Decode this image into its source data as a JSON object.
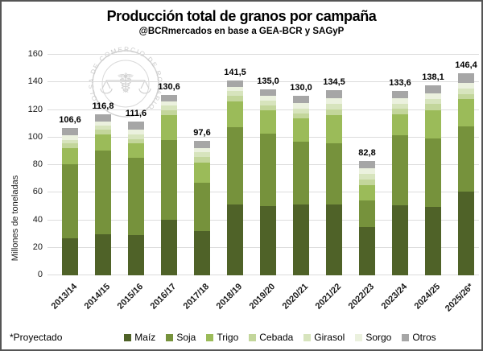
{
  "title": "Producción total de granos por campaña",
  "subtitle": "@BCRmercados en base a GEA-BCR y SAGyP",
  "footnote": "*Proyectado",
  "watermark_text": "BOLSA DE COMERCIO DE ROSARIO",
  "colors": {
    "maiz": "#4F6228",
    "soja": "#76923C",
    "trigo": "#9BBB59",
    "cebada": "#C3D69B",
    "girasol": "#D7E4BD",
    "sorgo": "#EBF1DE",
    "otros": "#A6A6A6",
    "gridline": "#DCDCDC",
    "watermark": "#C9C9C9"
  },
  "chart_data": {
    "type": "bar",
    "stacked": true,
    "title": "Producción total de granos por campaña",
    "subtitle": "@BCRmercados en base a GEA-BCR y SAGyP",
    "xlabel": "",
    "ylabel": "Millones de toneladas",
    "ylim": [
      0,
      160
    ],
    "ytick_step": 20,
    "grid": true,
    "legend_position": "bottom",
    "categories": [
      "2013/14",
      "2014/15",
      "2015/16",
      "2016/17",
      "2017/18",
      "2018/19",
      "2019/20",
      "2020/21",
      "2021/22",
      "2022/23",
      "2023/24",
      "2024/25",
      "2025/26*"
    ],
    "series": [
      {
        "key": "maiz",
        "name": "Maíz",
        "values": [
          27.0,
          29.5,
          29.0,
          40.5,
          32.0,
          51.5,
          50.5,
          51.5,
          51.5,
          35.0,
          51.0,
          49.5,
          61.0
        ]
      },
      {
        "key": "soja",
        "name": "Soja",
        "values": [
          53.4,
          60.8,
          56.0,
          57.5,
          35.0,
          55.9,
          52.5,
          45.5,
          44.5,
          19.5,
          50.5,
          50.0,
          47.0
        ]
      },
      {
        "key": "trigo",
        "name": "Trigo",
        "values": [
          12.0,
          12.0,
          10.5,
          18.4,
          15.0,
          19.0,
          17.0,
          17.0,
          20.0,
          10.7,
          15.2,
          20.4,
          20.0
        ]
      },
      {
        "key": "cebada",
        "name": "Cebada",
        "values": [
          3.5,
          3.3,
          3.4,
          3.4,
          3.7,
          3.7,
          3.5,
          3.6,
          4.5,
          4.3,
          4.3,
          4.3,
          3.4
        ]
      },
      {
        "key": "girasol",
        "name": "Girasol",
        "values": [
          2.4,
          3.1,
          3.2,
          3.3,
          3.5,
          3.5,
          3.4,
          3.4,
          3.9,
          3.9,
          3.5,
          3.9,
          3.9
        ]
      },
      {
        "key": "sorgo",
        "name": "Sorgo",
        "values": [
          3.3,
          3.1,
          3.5,
          3.0,
          3.1,
          3.2,
          3.3,
          3.9,
          4.3,
          4.5,
          3.9,
          4.0,
          4.3
        ]
      },
      {
        "key": "otros",
        "name": "Otros",
        "values": [
          5.0,
          5.0,
          6.0,
          4.5,
          5.3,
          4.7,
          4.8,
          5.1,
          5.8,
          4.9,
          5.2,
          6.0,
          6.8
        ]
      }
    ],
    "total_labels": [
      "106,6",
      "116,8",
      "111,6",
      "130,6",
      "97,6",
      "141,5",
      "135,0",
      "130,0",
      "134,5",
      "82,8",
      "133,6",
      "138,1",
      "146,4"
    ],
    "totals": [
      106.6,
      116.8,
      111.6,
      130.6,
      97.6,
      141.5,
      135.0,
      130.0,
      134.5,
      82.8,
      133.6,
      138.1,
      146.4
    ],
    "ytick_labels": [
      "0",
      "20",
      "40",
      "60",
      "80",
      "100",
      "120",
      "140",
      "160"
    ]
  }
}
